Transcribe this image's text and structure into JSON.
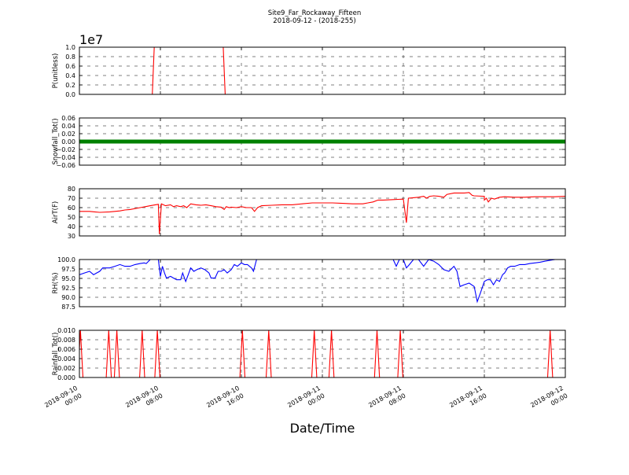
{
  "figure": {
    "title_line1": "Site9_Far_Rockaway_Fifteen",
    "title_line2": "2018-09-12 - (2018-255)",
    "xlabel": "Date/Time",
    "x_ticks": [
      {
        "l1": "2018-09-10",
        "l2": "00:00"
      },
      {
        "l1": "2018-09-10",
        "l2": "08:00"
      },
      {
        "l1": "2018-09-10",
        "l2": "16:00"
      },
      {
        "l1": "2018-09-11",
        "l2": "00:00"
      },
      {
        "l1": "2018-09-11",
        "l2": "08:00"
      },
      {
        "l1": "2018-09-11",
        "l2": "16:00"
      },
      {
        "l1": "2018-09-12",
        "l2": "00:00"
      }
    ],
    "x_range_hours": [
      0,
      48
    ]
  },
  "chart_data": [
    {
      "type": "line",
      "ylabel": "P(unitless)",
      "offset_text": "1e7",
      "ylim": [
        0,
        1.0
      ],
      "yticks": [
        "0.0",
        "0.2",
        "0.4",
        "0.6",
        "0.8",
        "1.0"
      ],
      "grid": true,
      "series": [
        {
          "color": "#ff0000",
          "points": [
            [
              0,
              0
            ],
            [
              7.2,
              0
            ],
            [
              7.4,
              1.05
            ],
            [
              14.2,
              1.05
            ],
            [
              14.4,
              0
            ],
            [
              48,
              0
            ]
          ]
        }
      ]
    },
    {
      "type": "line",
      "ylabel": "Snowfall_Tot()",
      "ylim": [
        -0.06,
        0.06
      ],
      "yticks": [
        "−0.06",
        "−0.04",
        "−0.02",
        "0.00",
        "0.02",
        "0.04",
        "0.06"
      ],
      "grid": true,
      "series": [
        {
          "color": "#008000",
          "width": 5,
          "points": [
            [
              0,
              0
            ],
            [
              48,
              0
            ]
          ]
        }
      ]
    },
    {
      "type": "line",
      "ylabel": "AirT(F)",
      "ylim": [
        30,
        80
      ],
      "yticks": [
        "30",
        "40",
        "50",
        "60",
        "70",
        "80"
      ],
      "grid": true,
      "series": [
        {
          "color": "#ff0000",
          "points": [
            [
              0,
              56
            ],
            [
              1,
              56
            ],
            [
              1.5,
              55.5
            ],
            [
              2,
              55
            ],
            [
              3,
              55.5
            ],
            [
              4,
              56.5
            ],
            [
              4.5,
              57.5
            ],
            [
              5,
              58
            ],
            [
              6,
              60
            ],
            [
              6.5,
              61
            ],
            [
              7,
              62
            ],
            [
              7.5,
              63
            ],
            [
              7.8,
              63.5
            ],
            [
              7.9,
              32
            ],
            [
              8.1,
              64
            ],
            [
              8.5,
              62
            ],
            [
              9,
              63
            ],
            [
              9.3,
              61
            ],
            [
              9.6,
              62
            ],
            [
              10,
              61
            ],
            [
              10.3,
              62
            ],
            [
              10.6,
              60
            ],
            [
              11,
              64
            ],
            [
              11.5,
              63
            ],
            [
              12,
              62.5
            ],
            [
              12.5,
              63
            ],
            [
              13,
              62
            ],
            [
              13.5,
              61
            ],
            [
              14,
              60.5
            ],
            [
              14.3,
              58
            ],
            [
              14.5,
              61
            ],
            [
              14.8,
              60
            ],
            [
              15,
              60.5
            ],
            [
              15.5,
              60
            ],
            [
              16,
              61
            ],
            [
              16.5,
              60
            ],
            [
              17,
              60
            ],
            [
              17.3,
              56
            ],
            [
              17.6,
              60
            ],
            [
              18,
              62
            ],
            [
              19,
              62.5
            ],
            [
              20,
              63
            ],
            [
              21,
              63
            ],
            [
              22,
              64
            ],
            [
              23,
              65
            ],
            [
              24,
              65
            ],
            [
              25,
              65
            ],
            [
              26,
              64.5
            ],
            [
              27,
              64
            ],
            [
              28,
              64
            ],
            [
              28.5,
              65
            ],
            [
              29,
              66
            ],
            [
              29.5,
              68
            ],
            [
              30,
              68
            ],
            [
              31,
              68.5
            ],
            [
              32,
              69
            ],
            [
              32.3,
              44
            ],
            [
              32.5,
              70
            ],
            [
              33,
              70.5
            ],
            [
              33.5,
              71
            ],
            [
              34,
              72
            ],
            [
              34.3,
              70
            ],
            [
              34.6,
              72
            ],
            [
              35,
              72.5
            ],
            [
              35.5,
              72
            ],
            [
              36,
              71
            ],
            [
              36.3,
              74
            ],
            [
              37,
              75.5
            ],
            [
              38,
              75.5
            ],
            [
              38.5,
              76
            ],
            [
              38.8,
              73
            ],
            [
              39,
              72.5
            ],
            [
              40,
              72
            ],
            [
              40,
              68
            ],
            [
              40.2,
              70
            ],
            [
              40.4,
              66
            ],
            [
              40.7,
              70
            ],
            [
              41,
              69
            ],
            [
              41.5,
              71
            ],
            [
              42,
              71.5
            ],
            [
              43,
              71
            ],
            [
              44,
              71
            ],
            [
              45,
              71.5
            ],
            [
              46,
              71.5
            ],
            [
              47,
              71.5
            ],
            [
              48,
              72
            ]
          ]
        }
      ]
    },
    {
      "type": "line",
      "ylabel": "RH(%)",
      "ylim": [
        86,
        100
      ],
      "yticks": [
        "87.5",
        "90.0",
        "92.5",
        "95.0",
        "97.5",
        "100.0"
      ],
      "grid": true,
      "series": [
        {
          "color": "#0000ff",
          "points": [
            [
              0,
              95.5
            ],
            [
              0.5,
              96
            ],
            [
              1,
              96.5
            ],
            [
              1.4,
              95.5
            ],
            [
              1.7,
              96
            ],
            [
              2,
              96.5
            ],
            [
              2.3,
              97.5
            ],
            [
              3,
              97.5
            ],
            [
              3.5,
              98
            ],
            [
              4,
              98.5
            ],
            [
              4.5,
              98
            ],
            [
              5,
              98
            ],
            [
              5.5,
              98.5
            ],
            [
              6,
              98.8
            ],
            [
              6.4,
              99
            ],
            [
              6.6,
              98.8
            ],
            [
              7,
              100
            ],
            [
              7.5,
              100
            ],
            [
              7.8,
              100
            ],
            [
              8,
              95
            ],
            [
              8.2,
              98
            ],
            [
              8.4,
              96
            ],
            [
              8.6,
              94.5
            ],
            [
              9,
              95
            ],
            [
              9.3,
              94.5
            ],
            [
              9.6,
              94
            ],
            [
              10,
              94
            ],
            [
              10.2,
              96
            ],
            [
              10.5,
              93.5
            ],
            [
              11,
              97.5
            ],
            [
              11.3,
              96.5
            ],
            [
              11.6,
              97
            ],
            [
              12,
              97.5
            ],
            [
              12.4,
              97
            ],
            [
              12.8,
              96
            ],
            [
              13,
              94.5
            ],
            [
              13.4,
              94.5
            ],
            [
              13.7,
              96.5
            ],
            [
              14,
              96.5
            ],
            [
              14.3,
              97
            ],
            [
              14.6,
              96
            ],
            [
              15,
              97
            ],
            [
              15.3,
              98.5
            ],
            [
              15.6,
              98
            ],
            [
              16,
              99
            ],
            [
              16.3,
              98.5
            ],
            [
              16.6,
              98.5
            ],
            [
              17,
              97.5
            ],
            [
              17.2,
              96.5
            ],
            [
              17.5,
              100
            ],
            [
              18,
              100
            ],
            [
              20,
              100
            ],
            [
              22,
              100
            ],
            [
              24,
              100
            ],
            [
              26,
              100
            ],
            [
              28,
              100
            ],
            [
              29.8,
              100
            ],
            [
              31,
              100
            ],
            [
              31.3,
              98
            ],
            [
              31.6,
              100
            ],
            [
              32,
              100
            ],
            [
              32.3,
              97.5
            ],
            [
              32.6,
              98.5
            ],
            [
              33,
              100
            ],
            [
              33.5,
              100
            ],
            [
              34,
              98
            ],
            [
              34.5,
              100
            ],
            [
              35,
              99.5
            ],
            [
              35.5,
              98.5
            ],
            [
              36,
              97
            ],
            [
              36.5,
              96.5
            ],
            [
              37,
              98
            ],
            [
              37.3,
              96.5
            ],
            [
              37.6,
              92
            ],
            [
              38,
              92.5
            ],
            [
              38.5,
              93
            ],
            [
              39,
              92
            ],
            [
              39.3,
              87.5
            ],
            [
              39.6,
              90
            ],
            [
              40,
              93.5
            ],
            [
              40.3,
              94
            ],
            [
              40.6,
              94
            ],
            [
              40.9,
              92.5
            ],
            [
              41.2,
              94
            ],
            [
              41.5,
              93.5
            ],
            [
              41.8,
              95.5
            ],
            [
              42,
              96
            ],
            [
              42.3,
              97.5
            ],
            [
              42.6,
              98
            ],
            [
              43,
              98
            ],
            [
              43.5,
              98.5
            ],
            [
              44,
              98.5
            ],
            [
              44.5,
              98.8
            ],
            [
              45,
              99
            ],
            [
              45.5,
              99.2
            ],
            [
              46,
              99.5
            ],
            [
              46.5,
              99.8
            ],
            [
              47,
              100
            ],
            [
              47.5,
              100
            ],
            [
              48,
              100
            ]
          ]
        }
      ]
    },
    {
      "type": "line",
      "ylabel": "Rainfall_Tot()",
      "ylim": [
        0,
        0.01
      ],
      "yticks": [
        "0.000",
        "0.002",
        "0.004",
        "0.006",
        "0.008",
        "0.010"
      ],
      "grid": true,
      "series": [
        {
          "color": "#ff0000",
          "spikes": [
            0.1,
            2.9,
            3.7,
            6.2,
            7.7,
            16.1,
            18.7,
            23.2,
            24.9,
            29.4,
            31.7,
            46.5
          ],
          "spike_value": 0.01
        }
      ]
    }
  ]
}
